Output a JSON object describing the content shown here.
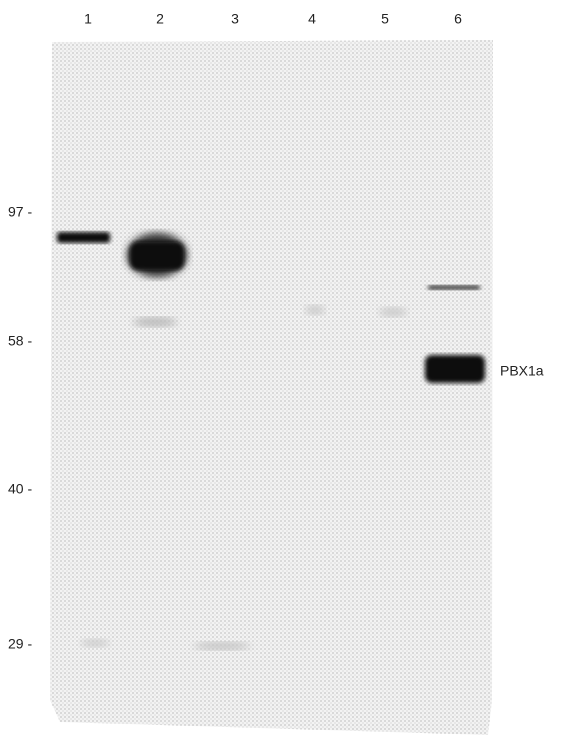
{
  "lanes": [
    "1",
    "2",
    "3",
    "4",
    "5",
    "6"
  ],
  "markers": [
    "97 -",
    "58 -",
    "40 -",
    "29 -"
  ],
  "band_label": "PBX1a"
}
